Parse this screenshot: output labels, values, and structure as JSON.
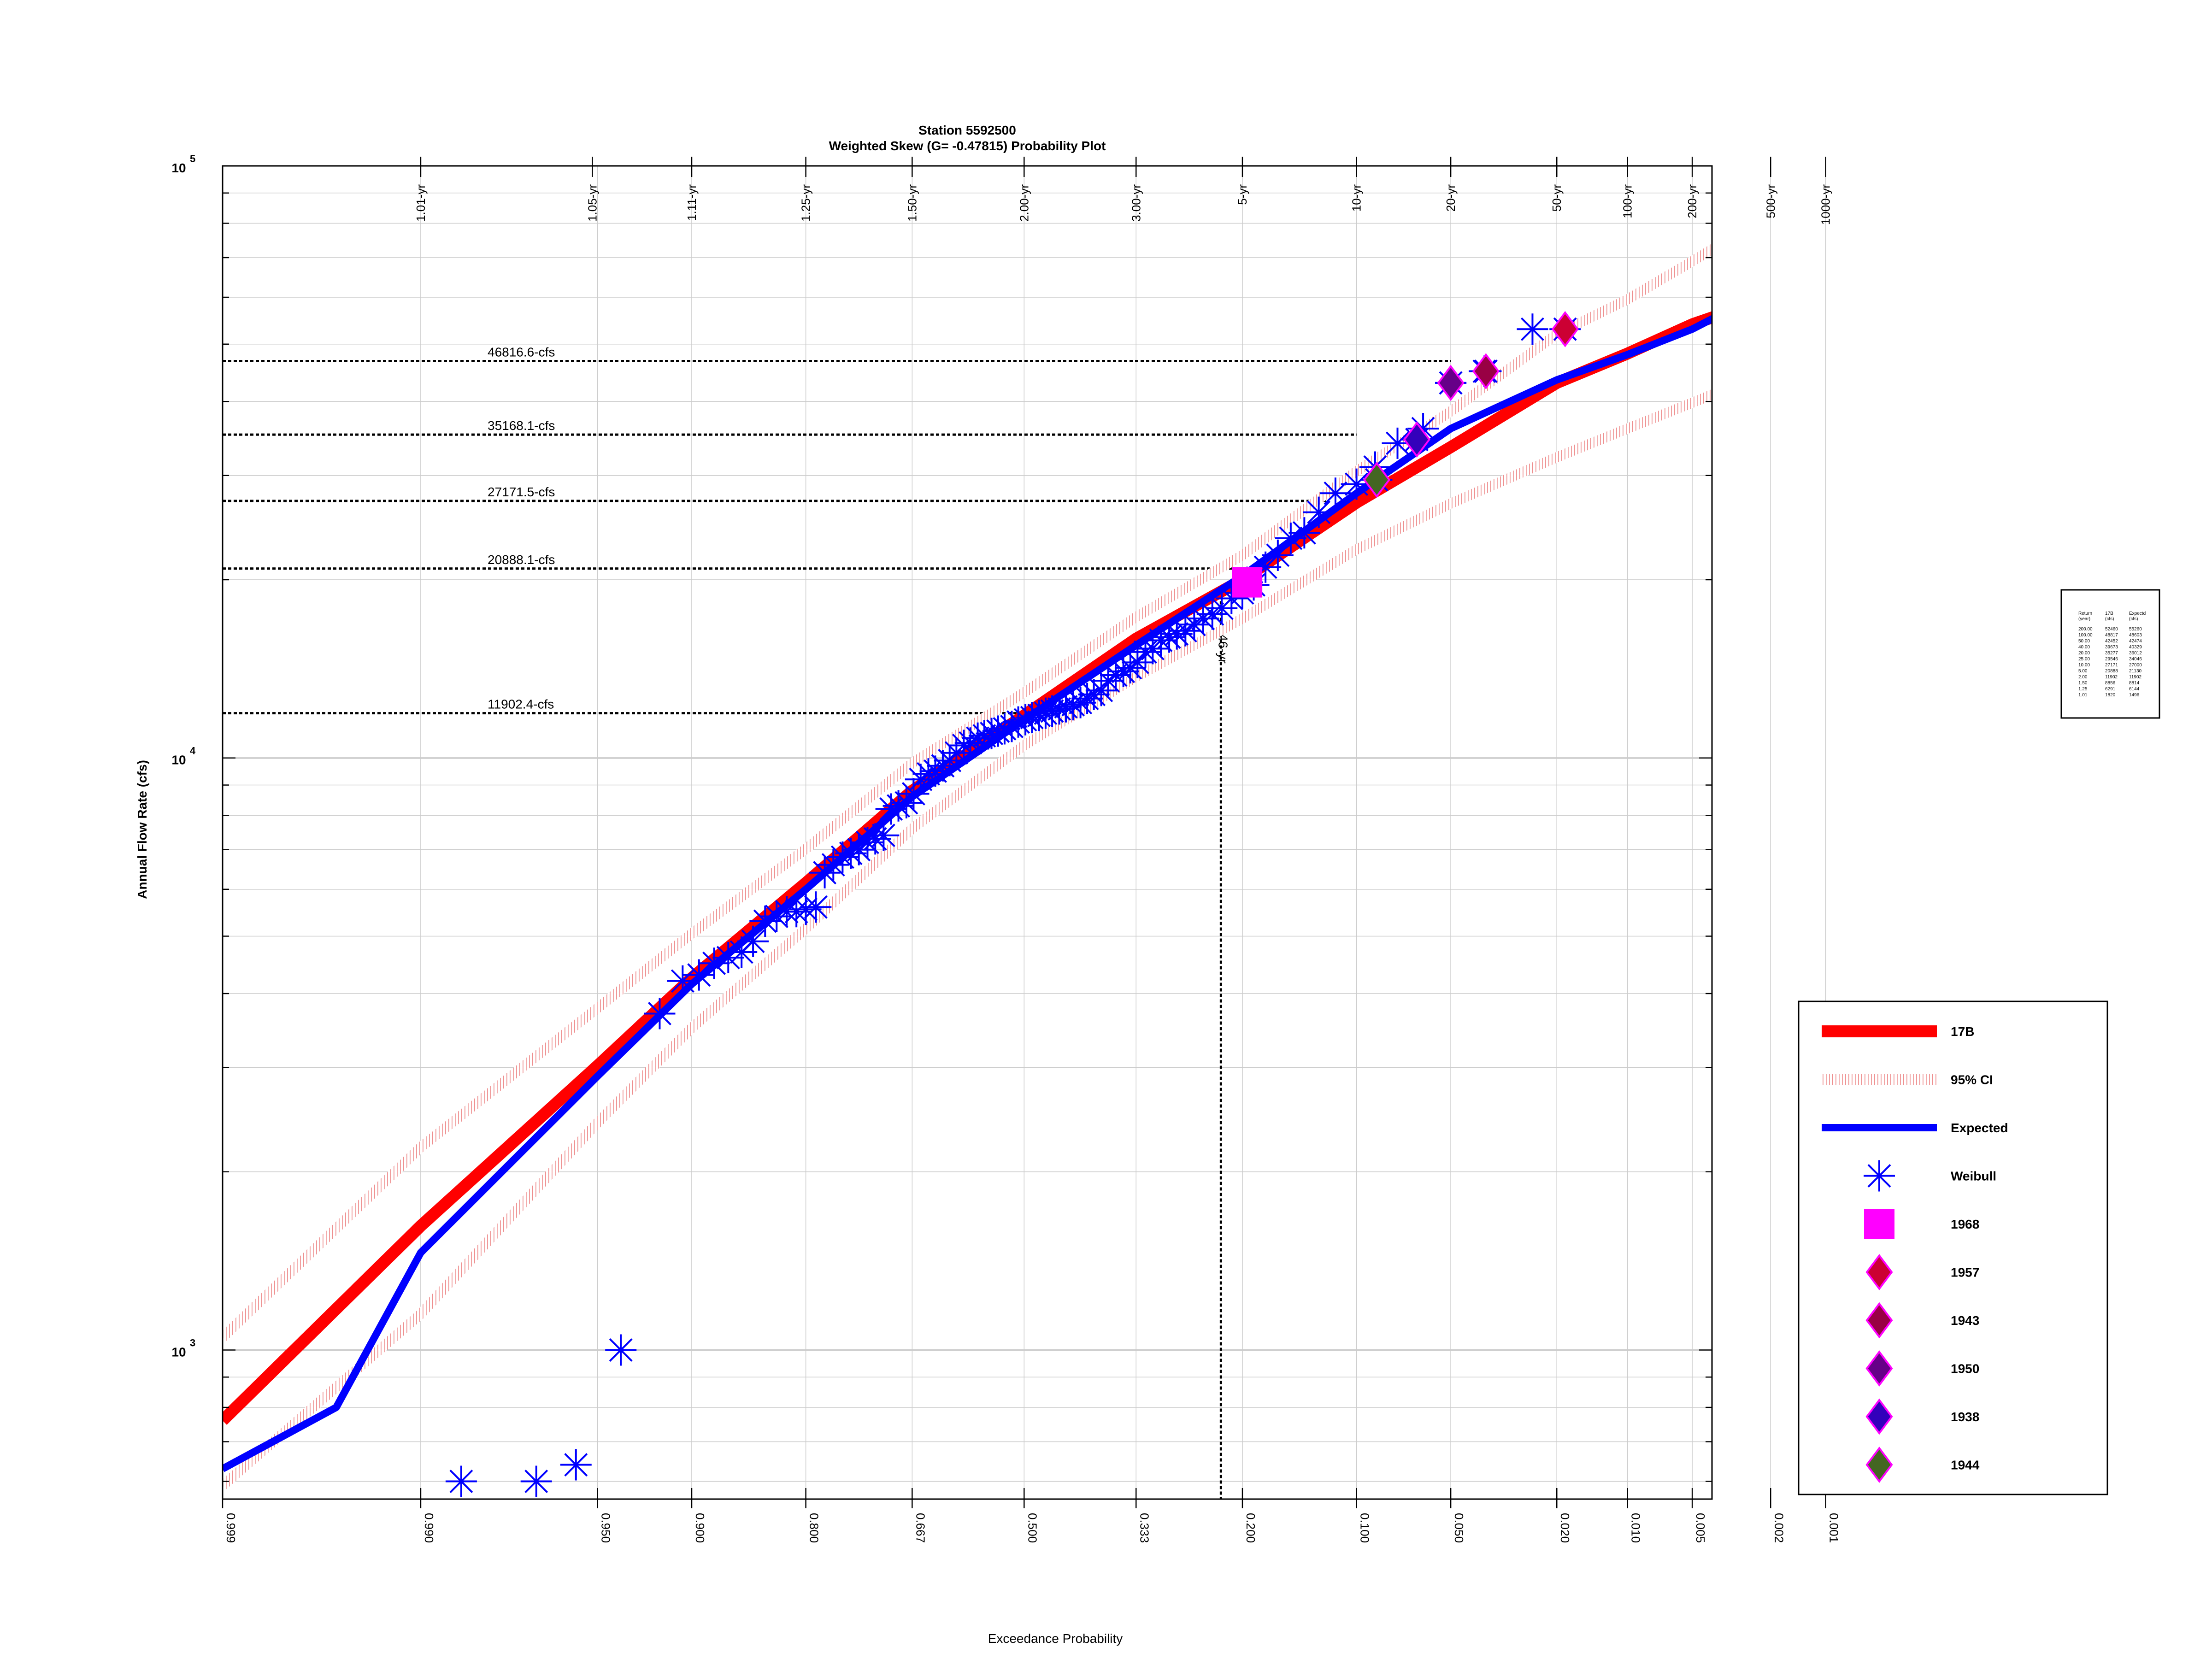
{
  "chart_data": {
    "type": "scatter",
    "title": "Station 5592500",
    "subtitle": "Weighted Skew (G= -0.47815) Probability Plot",
    "xlabel": "Exceedance Probability",
    "ylabel": "Annual Flow Rate (cfs)",
    "y_scale": "log",
    "x_scale": "normal-probability",
    "xlim": [
      0.999,
      0.004
    ],
    "ylim": [
      560,
      100000
    ],
    "grid": true,
    "y_ticks": [
      {
        "base": "10",
        "exp": "3",
        "value": 1000
      },
      {
        "base": "10",
        "exp": "4",
        "value": 10000
      },
      {
        "base": "10",
        "exp": "5",
        "value": 100000
      }
    ],
    "x_ticks_bottom": [
      {
        "label": "0.999",
        "p": 0.999
      },
      {
        "label": "0.990",
        "p": 0.99
      },
      {
        "label": "0.950",
        "p": 0.95
      },
      {
        "label": "0.900",
        "p": 0.9
      },
      {
        "label": "0.800",
        "p": 0.8
      },
      {
        "label": "0.667",
        "p": 0.667
      },
      {
        "label": "0.500",
        "p": 0.5
      },
      {
        "label": "0.333",
        "p": 0.333
      },
      {
        "label": "0.200",
        "p": 0.2
      },
      {
        "label": "0.100",
        "p": 0.1
      },
      {
        "label": "0.050",
        "p": 0.05
      },
      {
        "label": "0.020",
        "p": 0.02
      },
      {
        "label": "0.010",
        "p": 0.01
      },
      {
        "label": "0.005",
        "p": 0.005
      },
      {
        "label": "0.002",
        "p": 0.002
      },
      {
        "label": "0.001",
        "p": 0.001
      }
    ],
    "x_ticks_top": [
      {
        "label": "1.01-yr",
        "p": 0.99
      },
      {
        "label": "1.05-yr",
        "p": 0.952
      },
      {
        "label": "1.11-yr",
        "p": 0.9
      },
      {
        "label": "1.25-yr",
        "p": 0.8
      },
      {
        "label": "1.50-yr",
        "p": 0.667
      },
      {
        "label": "2.00-yr",
        "p": 0.5
      },
      {
        "label": "3.00-yr",
        "p": 0.333
      },
      {
        "label": "5-yr",
        "p": 0.2
      },
      {
        "label": "10-yr",
        "p": 0.1
      },
      {
        "label": "20-yr",
        "p": 0.05
      },
      {
        "label": "50-yr",
        "p": 0.02
      },
      {
        "label": "100-yr",
        "p": 0.01
      },
      {
        "label": "200-yr",
        "p": 0.005
      },
      {
        "label": "500-yr",
        "p": 0.002
      },
      {
        "label": "1000-yr",
        "p": 0.001
      }
    ],
    "reference_lines": [
      {
        "label": "46816.6-cfs",
        "value": 46816.6,
        "p": 0.05
      },
      {
        "label": "35168.1-cfs",
        "value": 35168.1,
        "p": 0.1
      },
      {
        "label": "27171.5-cfs",
        "value": 27171.5,
        "p": 0.12
      },
      {
        "label": "20888.1-cfs",
        "value": 20888.1,
        "p": 0.2
      },
      {
        "label": "11902.4-cfs",
        "value": 11902.4,
        "p": 0.5
      }
    ],
    "vertical_reference": {
      "label": "4.46-yr",
      "p": 0.224,
      "value": 18800
    },
    "series": [
      {
        "name": "17B",
        "kind": "line",
        "color": "#ff0000",
        "x": [
          0.999,
          0.99,
          0.95,
          0.9,
          0.8,
          0.667,
          0.5,
          0.333,
          0.2,
          0.1,
          0.05,
          0.02,
          0.01,
          0.005,
          0.002,
          0.001
        ],
        "values": [
          760,
          1620,
          3020,
          4250,
          6150,
          8800,
          11800,
          15900,
          20000,
          27000,
          33500,
          43000,
          48200,
          54000,
          60000,
          65000
        ]
      },
      {
        "name": "95% CI",
        "kind": "band-upper",
        "color": "#f2a0a0",
        "x": [
          0.999,
          0.99,
          0.95,
          0.9,
          0.8,
          0.667,
          0.5,
          0.333,
          0.2,
          0.1,
          0.05,
          0.02,
          0.01,
          0.005,
          0.002,
          0.001
        ],
        "values": [
          1050,
          2200,
          3780,
          5050,
          7020,
          9800,
          12900,
          17300,
          22000,
          30500,
          38500,
          52000,
          59500,
          69000,
          83000,
          94000
        ]
      },
      {
        "name": "95% CI",
        "kind": "band-lower",
        "color": "#f2a0a0",
        "x": [
          0.999,
          0.99,
          0.95,
          0.9,
          0.8,
          0.667,
          0.5,
          0.333,
          0.2,
          0.1,
          0.05,
          0.02,
          0.01,
          0.005,
          0.002,
          0.001
        ],
        "values": [
          590,
          1150,
          2420,
          3500,
          5150,
          7600,
          10500,
          13700,
          17200,
          22500,
          26900,
          32200,
          36000,
          39800,
          45200,
          49500
        ]
      },
      {
        "name": "Expected",
        "kind": "line",
        "color": "#0000ff",
        "x": [
          0.999,
          0.996,
          0.99,
          0.95,
          0.9,
          0.8,
          0.667,
          0.5,
          0.333,
          0.2,
          0.1,
          0.05,
          0.02,
          0.01,
          0.005,
          0.002
        ],
        "values": [
          630,
          800,
          1460,
          2900,
          4150,
          6000,
          8600,
          11600,
          15500,
          20300,
          28000,
          36000,
          43500,
          48000,
          53000,
          62000
        ]
      },
      {
        "name": "Weibull",
        "kind": "points",
        "color": "#0000ff",
        "x": [
          0.985,
          0.97,
          0.958,
          0.94,
          0.92,
          0.906,
          0.895,
          0.884,
          0.873,
          0.862,
          0.852,
          0.841,
          0.83,
          0.82,
          0.81,
          0.8,
          0.789,
          0.779,
          0.769,
          0.758,
          0.748,
          0.738,
          0.727,
          0.717,
          0.706,
          0.696,
          0.686,
          0.675,
          0.665,
          0.655,
          0.644,
          0.634,
          0.623,
          0.613,
          0.603,
          0.592,
          0.582,
          0.571,
          0.561,
          0.55,
          0.54,
          0.53,
          0.519,
          0.509,
          0.498,
          0.488,
          0.477,
          0.467,
          0.457,
          0.446,
          0.436,
          0.425,
          0.414,
          0.404,
          0.394,
          0.383,
          0.373,
          0.362,
          0.351,
          0.341,
          0.331,
          0.32,
          0.31,
          0.299,
          0.288,
          0.278,
          0.267,
          0.256,
          0.245,
          0.234,
          0.223,
          0.212,
          0.2,
          0.188,
          0.176,
          0.164,
          0.152,
          0.14,
          0.128,
          0.115,
          0.1,
          0.088,
          0.075,
          0.062,
          0.05,
          0.038,
          0.025
        ],
        "values": [
          600,
          600,
          640,
          1000,
          3700,
          4200,
          4300,
          4500,
          4600,
          4700,
          4900,
          5300,
          5400,
          5500,
          5500,
          5550,
          5600,
          6400,
          6600,
          6800,
          6900,
          7000,
          7200,
          7300,
          7400,
          8200,
          8300,
          8400,
          8700,
          9200,
          9400,
          9500,
          9700,
          9900,
          10200,
          10500,
          10600,
          10800,
          10900,
          11000,
          11100,
          11200,
          11300,
          11500,
          11600,
          11700,
          11800,
          11900,
          12000,
          12100,
          12200,
          12300,
          12400,
          12600,
          12800,
          13000,
          13500,
          13800,
          14000,
          14200,
          14500,
          15100,
          15300,
          15800,
          16000,
          16200,
          16400,
          16800,
          17200,
          17500,
          17900,
          18600,
          19000,
          19600,
          21000,
          22000,
          23500,
          24000,
          26000,
          28000,
          29000,
          31000,
          34000,
          36000,
          43000,
          45000,
          53000
        ]
      },
      {
        "name": "1968",
        "kind": "marker",
        "shape": "square",
        "fill": "#ff00ff",
        "stroke": "#ff00ff",
        "x": [
          0.195
        ],
        "values": [
          19800
        ]
      },
      {
        "name": "1957",
        "kind": "marker",
        "shape": "diamond",
        "fill": "#cc0033",
        "stroke": "#ff00ff",
        "x": [
          0.0185
        ],
        "values": [
          53000
        ]
      },
      {
        "name": "1943",
        "kind": "marker",
        "shape": "diamond",
        "fill": "#990044",
        "stroke": "#ff00ff",
        "x": [
          0.0375
        ],
        "values": [
          45000
        ]
      },
      {
        "name": "1950",
        "kind": "marker",
        "shape": "diamond",
        "fill": "#660088",
        "stroke": "#ff00ff",
        "x": [
          0.05
        ],
        "values": [
          43000
        ]
      },
      {
        "name": "1938",
        "kind": "marker",
        "shape": "diamond",
        "fill": "#3300bb",
        "stroke": "#ff00ff",
        "x": [
          0.065
        ],
        "values": [
          34500
        ]
      },
      {
        "name": "1944",
        "kind": "marker",
        "shape": "diamond",
        "fill": "#446622",
        "stroke": "#ff00ff",
        "x": [
          0.087
        ],
        "values": [
          29500
        ]
      }
    ],
    "legend": {
      "placement": "right",
      "entries": [
        {
          "label": "17B",
          "kind": "line",
          "color": "#ff0000"
        },
        {
          "label": "95% CI",
          "kind": "hatched-line",
          "color": "#f2a0a0"
        },
        {
          "label": "Expected",
          "kind": "line",
          "color": "#0000ff"
        },
        {
          "label": "Weibull",
          "kind": "asterisk",
          "color": "#0000ff"
        },
        {
          "label": "1968",
          "kind": "square",
          "color": "#ff00ff"
        },
        {
          "label": "1957",
          "kind": "diamond",
          "color": "#cc0033"
        },
        {
          "label": "1943",
          "kind": "diamond",
          "color": "#990044"
        },
        {
          "label": "1950",
          "kind": "diamond",
          "color": "#660088"
        },
        {
          "label": "1938",
          "kind": "diamond",
          "color": "#3300bb"
        },
        {
          "label": "1944",
          "kind": "diamond",
          "color": "#446622"
        }
      ]
    },
    "summary_table": {
      "header": [
        "Return",
        "17B",
        "Expectd"
      ],
      "subheader": [
        "(year)",
        "(cfs)",
        "(cfs)"
      ],
      "rows": [
        [
          "200.00",
          "52460",
          "55260"
        ],
        [
          "100.00",
          "48817",
          "48603"
        ],
        [
          "50.00",
          "42452",
          "42474"
        ],
        [
          "40.00",
          "39673",
          "40329"
        ],
        [
          "20.00",
          "35277",
          "36012"
        ],
        [
          "25.00",
          "29546",
          "34046"
        ],
        [
          "10.00",
          "27171",
          "27000"
        ],
        [
          "5.00",
          "20888",
          "21130"
        ],
        [
          "2.00",
          "11902",
          "11902"
        ],
        [
          "1.50",
          "8856",
          "8814"
        ],
        [
          "1.25",
          "6291",
          "6144"
        ],
        [
          "1.01",
          "1820",
          "1496"
        ]
      ]
    }
  }
}
